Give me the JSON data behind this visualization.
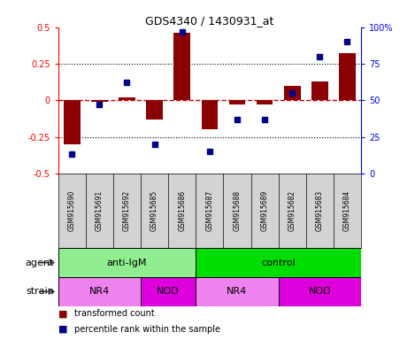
{
  "title": "GDS4340 / 1430931_at",
  "samples": [
    "GSM915690",
    "GSM915691",
    "GSM915692",
    "GSM915685",
    "GSM915686",
    "GSM915687",
    "GSM915688",
    "GSM915689",
    "GSM915682",
    "GSM915683",
    "GSM915684"
  ],
  "red_values": [
    -0.3,
    -0.01,
    0.02,
    -0.13,
    0.46,
    -0.2,
    -0.03,
    -0.03,
    0.1,
    0.13,
    0.32
  ],
  "blue_values": [
    13,
    47,
    62,
    20,
    97,
    15,
    37,
    37,
    55,
    80,
    90
  ],
  "ylim_left": [
    -0.5,
    0.5
  ],
  "ylim_right": [
    0,
    100
  ],
  "yticks_left": [
    -0.5,
    -0.25,
    0,
    0.25,
    0.5
  ],
  "yticks_right": [
    0,
    25,
    50,
    75,
    100
  ],
  "hlines": [
    0.25,
    -0.25
  ],
  "agent_groups": [
    {
      "label": "anti-IgM",
      "start": 0,
      "end": 5,
      "color": "#90EE90"
    },
    {
      "label": "control",
      "start": 5,
      "end": 11,
      "color": "#00DD00"
    }
  ],
  "strain_groups": [
    {
      "label": "NR4",
      "start": 0,
      "end": 3,
      "color": "#EE82EE"
    },
    {
      "label": "NOD",
      "start": 3,
      "end": 5,
      "color": "#DD00DD"
    },
    {
      "label": "NR4",
      "start": 5,
      "end": 8,
      "color": "#EE82EE"
    },
    {
      "label": "NOD",
      "start": 8,
      "end": 11,
      "color": "#DD00DD"
    }
  ],
  "agent_label": "agent",
  "strain_label": "strain",
  "bar_color": "#8B0000",
  "dot_color": "#00008B",
  "zero_line_color": "#CC0000",
  "bg_color": "#FFFFFF",
  "sample_bg": "#D3D3D3"
}
